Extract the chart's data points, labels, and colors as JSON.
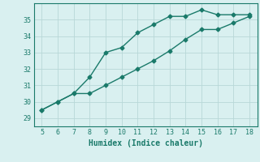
{
  "line1_x": [
    5,
    6,
    7,
    8,
    9,
    10,
    11,
    12,
    13,
    14,
    15,
    16,
    17,
    18
  ],
  "line1_y": [
    29.5,
    30.0,
    30.5,
    31.5,
    33.0,
    33.3,
    34.2,
    34.7,
    35.2,
    35.2,
    35.6,
    35.3,
    35.3,
    35.3
  ],
  "line2_x": [
    5,
    6,
    7,
    8,
    9,
    10,
    11,
    12,
    13,
    14,
    15,
    16,
    17,
    18
  ],
  "line2_y": [
    29.5,
    30.0,
    30.5,
    30.5,
    31.0,
    31.5,
    32.0,
    32.5,
    33.1,
    33.8,
    34.4,
    34.4,
    34.8,
    35.2
  ],
  "line_color": "#1a7a6a",
  "bg_color": "#d9f0f0",
  "grid_color": "#b8d8d8",
  "xlabel": "Humidex (Indice chaleur)",
  "xlim": [
    4.5,
    18.5
  ],
  "ylim": [
    28.5,
    36.0
  ],
  "xticks": [
    5,
    6,
    7,
    8,
    9,
    10,
    11,
    12,
    13,
    14,
    15,
    16,
    17,
    18
  ],
  "yticks": [
    29,
    30,
    31,
    32,
    33,
    34,
    35
  ],
  "marker": "D",
  "markersize": 2.5,
  "linewidth": 1.0
}
